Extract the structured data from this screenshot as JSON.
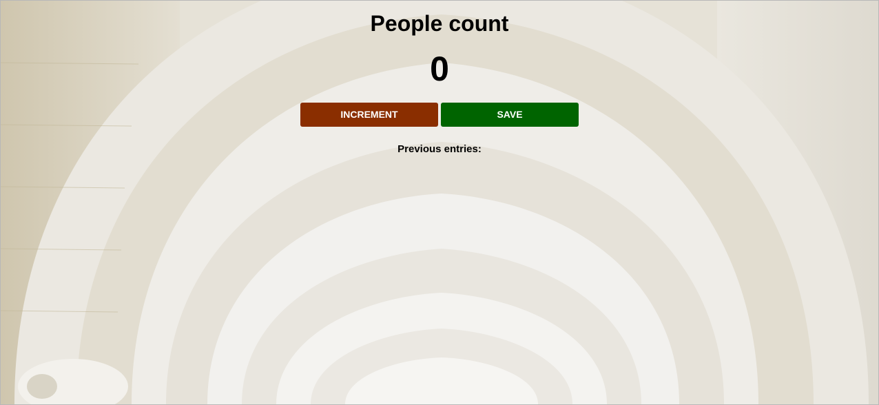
{
  "page": {
    "title": "People count",
    "count": "0",
    "entries_label": "Previous entries:"
  },
  "buttons": {
    "increment_label": "INCREMENT",
    "save_label": "SAVE"
  },
  "colors": {
    "increment": "#8a2e00",
    "save": "#006400",
    "background": "#e9e5dc"
  },
  "background_image": "arched-stone-corridor"
}
